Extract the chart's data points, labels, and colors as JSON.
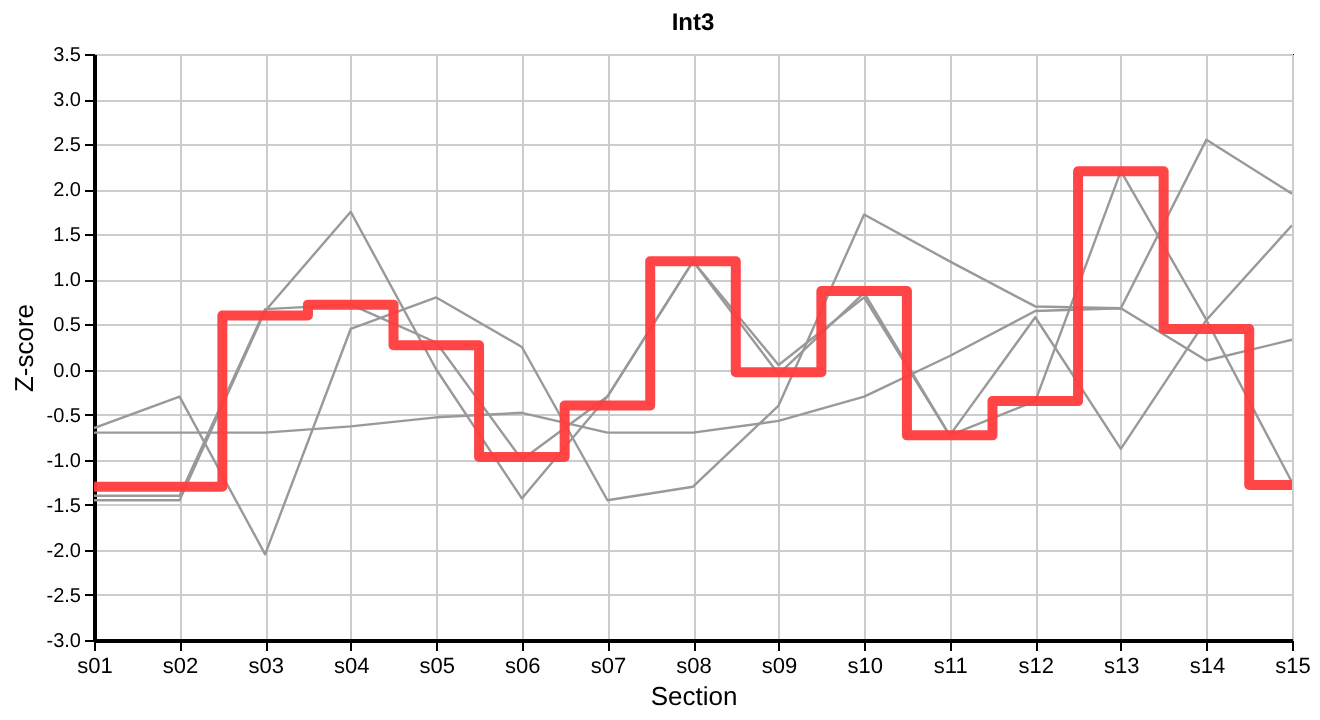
{
  "chart_data": {
    "type": "line",
    "title": "Int3",
    "xlabel": "Section",
    "ylabel": "Z-score",
    "categories": [
      "s01",
      "s02",
      "s03",
      "s04",
      "s05",
      "s06",
      "s07",
      "s08",
      "s09",
      "s10",
      "s11",
      "s12",
      "s13",
      "s14",
      "s15"
    ],
    "ylim": [
      -3.0,
      3.5
    ],
    "yticks": [
      {
        "value": -3,
        "label": "-3.0"
      },
      {
        "value": -2.5,
        "label": "-2.5"
      },
      {
        "value": -2,
        "label": "-2.0"
      },
      {
        "value": -1.5,
        "label": "-1.5"
      },
      {
        "value": -1,
        "label": "-1.0"
      },
      {
        "value": -0.5,
        "label": "-0.5"
      },
      {
        "value": 0,
        "label": "0.0"
      },
      {
        "value": 0.5,
        "label": "0.5"
      },
      {
        "value": 1,
        "label": "1.0"
      },
      {
        "value": 1.5,
        "label": "1.5"
      },
      {
        "value": 2,
        "label": "2.0"
      },
      {
        "value": 2.5,
        "label": "2.5"
      },
      {
        "value": 3,
        "label": "3.0"
      },
      {
        "value": 3.5,
        "label": "3.5"
      }
    ],
    "grid": true,
    "series": [
      {
        "color": "#999999",
        "values": [
          -0.7,
          -0.7,
          -0.7,
          -0.63,
          -0.53,
          -0.48,
          -0.7,
          -0.7,
          -0.57,
          -0.3,
          0.15,
          0.65,
          0.68,
          0.1,
          0.33
        ]
      },
      {
        "color": "#999999",
        "values": [
          -0.65,
          -0.3,
          -2.05,
          0.45,
          0.8,
          0.25,
          -1.45,
          -1.3,
          -0.4,
          1.72,
          1.2,
          0.7,
          0.68,
          2.55,
          1.95
        ]
      },
      {
        "color": "#999999",
        "values": [
          -1.45,
          -1.45,
          0.65,
          1.75,
          0.0,
          -1.43,
          -0.3,
          1.2,
          0.05,
          0.8,
          -0.73,
          0.58,
          -0.88,
          0.55,
          1.6
        ]
      },
      {
        "color": "#999999",
        "values": [
          -1.4,
          -1.4,
          0.67,
          0.72,
          0.3,
          -1.0,
          -0.3,
          1.2,
          -0.05,
          0.85,
          -0.73,
          -0.35,
          2.2,
          0.55,
          -1.25
        ]
      },
      {
        "type": "step",
        "color": "#ff3b3b",
        "values": [
          -1.3,
          -1.3,
          0.6,
          0.72,
          0.27,
          -0.97,
          -0.4,
          1.2,
          -0.03,
          0.87,
          -0.73,
          -0.35,
          2.2,
          0.45,
          -1.28
        ]
      }
    ]
  }
}
